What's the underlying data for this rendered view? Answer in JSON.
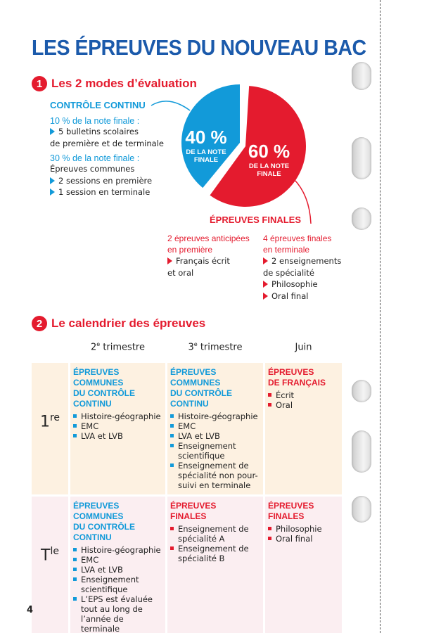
{
  "title": "LES ÉPREUVES DU NOUVEAU BAC",
  "page_number": "4",
  "colors": {
    "title": "#1b5aab",
    "blue": "#129ad9",
    "red": "#e41b2e",
    "row_premiere": "#fdf1e1",
    "row_terminale": "#fbeef1"
  },
  "section1": {
    "number": "1",
    "title": "Les 2 modes d’évaluation",
    "controle": {
      "heading": "CONTRÔLE CONTINU",
      "sub1": "10 % de la note finale :",
      "item1": "5 bulletins scolaires",
      "item1b": "de première et de terminale",
      "sub2": "30 % de la note finale :",
      "text2": "Épreuves communes",
      "item2": "2 sessions en première",
      "item3": "1 session en terminale"
    },
    "pie": {
      "blue_value": 40,
      "red_value": 60,
      "blue_pct": "40 %",
      "blue_label1": "DE LA NOTE",
      "blue_label2": "FINALE",
      "red_pct": "60 %",
      "red_label1": "DE LA NOTE",
      "red_label2": "FINALE"
    },
    "finales": {
      "heading": "ÉPREUVES FINALES",
      "col1_h1": "2 épreuves anticipées",
      "col1_h2": "en première",
      "col1_item": "Français écrit",
      "col1_item_b": "et oral",
      "col2_h1": "4 épreuves finales",
      "col2_h2": "en terminale",
      "col2_item1": "2 enseignements",
      "col2_item1b": "de spécialité",
      "col2_item2": "Philosophie",
      "col2_item3": "Oral final"
    }
  },
  "section2": {
    "number": "2",
    "title": "Le calendrier des épreuves",
    "headers": [
      {
        "n": "2",
        "sup": "e",
        "t": " trimestre"
      },
      {
        "n": "3",
        "sup": "e",
        "t": " trimestre"
      },
      {
        "n": "Juin",
        "sup": "",
        "t": ""
      }
    ],
    "rows": [
      {
        "level": "1",
        "sup": "re",
        "cells": [
          {
            "h1": "ÉPREUVES COMMUNES",
            "h2": "DU CONTRÔLE CONTINU",
            "items": [
              "Histoire-géographie",
              "EMC",
              "LVA et LVB"
            ]
          },
          {
            "h1": "ÉPREUVES COMMUNES",
            "h2": "DU CONTRÔLE CONTINU",
            "items": [
              "Histoire-géographie",
              "EMC",
              "LVA et LVB",
              "Enseignement scientifique",
              "Enseignement de spécialité non pour-suivi en terminale"
            ]
          },
          {
            "h1": "ÉPREUVES",
            "h2": "DE FRANÇAIS",
            "items": [
              "Écrit",
              "Oral"
            ]
          }
        ]
      },
      {
        "level": "T",
        "sup": "le",
        "cells": [
          {
            "h1": "ÉPREUVES COMMUNES",
            "h2": "DU CONTRÔLE CONTINU",
            "items": [
              "Histoire-géographie",
              "EMC",
              "LVA et LVB",
              "Enseignement scientifique",
              "L’EPS est évaluée tout au long de l’année de terminale"
            ]
          },
          {
            "h1": "ÉPREUVES",
            "h2": "FINALES",
            "items": [
              "Enseignement de spécialité A",
              "Enseignement de spécialité B"
            ]
          },
          {
            "h1": "ÉPREUVES",
            "h2": "FINALES",
            "items": [
              "Philosophie",
              "Oral final"
            ]
          }
        ]
      }
    ]
  }
}
